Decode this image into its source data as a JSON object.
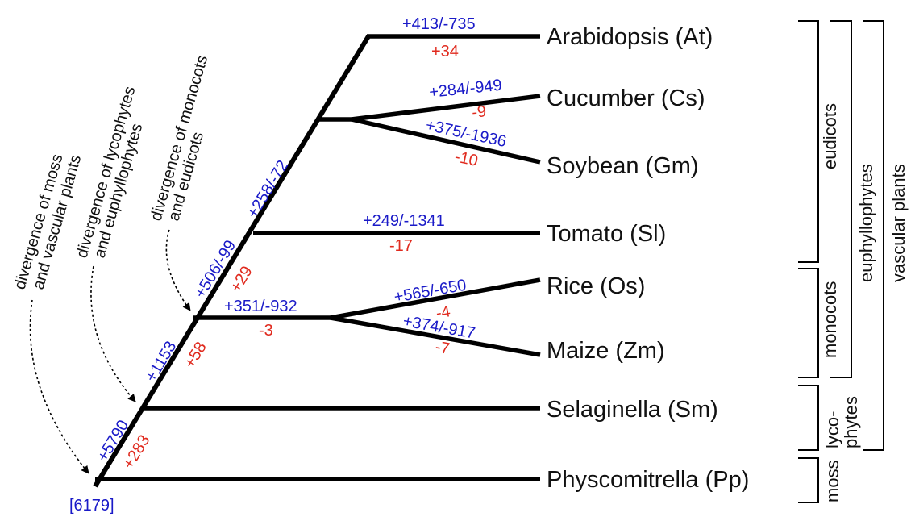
{
  "taxa": {
    "at": "Arabidopsis (At)",
    "cs": "Cucumber (Cs)",
    "gm": "Soybean (Gm)",
    "sl": "Tomato (Sl)",
    "os": "Rice (Os)",
    "zm": "Maize (Zm)",
    "sm": "Selaginella (Sm)",
    "pp": "Physcomitrella (Pp)"
  },
  "branch_values": {
    "at_gain_loss": "+413/-735",
    "at_net": "+34",
    "cs_gain_loss": "+284/-949",
    "cs_net": "-9",
    "gm_gain_loss": "+375/-1936",
    "gm_net": "-10",
    "sl_gain_loss": "+249/-1341",
    "sl_net": "-17",
    "monocot_stem_gain_loss": "+351/-932",
    "monocot_stem_net": "-3",
    "os_gain_loss": "+565/-650",
    "os_net": "-4",
    "zm_gain_loss": "+374/-917",
    "zm_net": "-7",
    "eudicot_core_gain_loss": "+258/-72",
    "eudicot_stem_gain_loss": "+506/-99",
    "eudicot_stem_net": "+29",
    "euphyllophyte_gain": "+1153",
    "euphyllophyte_net": "+58",
    "vascular_gain": "+5790",
    "vascular_net": "+283",
    "root": "[6179]"
  },
  "annotations": {
    "moss_vascular": [
      "divergence of moss",
      "and vascular plants"
    ],
    "lyco_euphyl": [
      "divergence of lycophytes",
      "and euphyllophytes"
    ],
    "mono_eudi": [
      "divergence of monocots",
      "and eudicots"
    ]
  },
  "groups": {
    "eudicots": "eudicots",
    "monocots": "monocots",
    "lycophytes": [
      "lyco-",
      "phytes"
    ],
    "moss": "moss",
    "euphyllophytes": "euphyllophytes",
    "vascular": "vascular plants"
  },
  "colors": {
    "gain": "#1a1ac8",
    "loss": "#e02a1e",
    "line": "#000000"
  }
}
